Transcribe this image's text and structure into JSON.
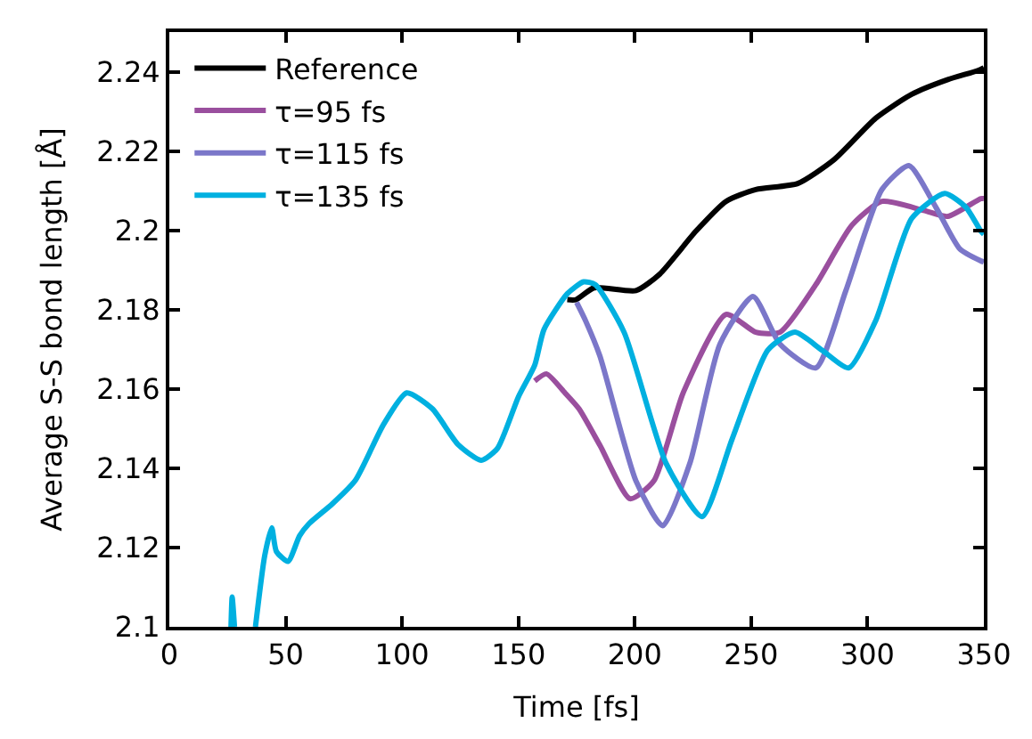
{
  "chart_data": {
    "type": "line",
    "xlabel": "Time [fs]",
    "ylabel": "Average S-S bond length [Å]",
    "xlim": [
      0,
      350
    ],
    "xticks": [
      0,
      50,
      100,
      150,
      200,
      250,
      300,
      350
    ],
    "ylim": [
      2.1,
      2.25
    ],
    "yticks": [
      2.1,
      2.12,
      2.14,
      2.16,
      2.18,
      2.2,
      2.22,
      2.24
    ],
    "legend": "top left",
    "marker": "none",
    "line_style": "solid",
    "series": [
      {
        "name": "Reference",
        "color": "#000000",
        "x": [
          171,
          174.7,
          182.5,
          200.5,
          210.8,
          226.3,
          239.2,
          252,
          270,
          285.6,
          303.6,
          319,
          334.5,
          347.4,
          350
        ],
        "values": [
          2.1825,
          2.1825,
          2.1855,
          2.1848,
          2.189,
          2.1998,
          2.2073,
          2.2103,
          2.2118,
          2.2178,
          2.2283,
          2.2343,
          2.238,
          2.2403,
          2.241
        ]
      },
      {
        "name": "τ=95 fs",
        "color": "#9a4f9e",
        "x": [
          157,
          162,
          170,
          176,
          185,
          198,
          208.2,
          221,
          239.2,
          252,
          262.4,
          277.8,
          293.3,
          306.2,
          324.2,
          334.5,
          348.7,
          350
        ],
        "values": [
          2.162,
          2.1638,
          2.159,
          2.155,
          2.1458,
          2.1323,
          2.1368,
          2.1593,
          2.1788,
          2.1743,
          2.1743,
          2.1863,
          2.2013,
          2.2073,
          2.205,
          2.2035,
          2.208,
          2.208
        ]
      },
      {
        "name": "τ=115 fs",
        "color": "#7b77c9",
        "x": [
          175,
          179,
          185,
          200.5,
          212,
          223.7,
          236.6,
          250.8,
          262.4,
          277.8,
          290.7,
          306.2,
          317.8,
          329.4,
          339.7,
          348.7,
          350
        ],
        "values": [
          2.1818,
          2.177,
          2.1683,
          2.1368,
          2.1255,
          2.1413,
          2.1713,
          2.1833,
          2.1713,
          2.1653,
          2.1848,
          2.2103,
          2.2163,
          2.2058,
          2.1953,
          2.1923,
          2.192
        ]
      },
      {
        "name": "τ=135 fs",
        "color": "#00b0e0",
        "x": [
          26.5,
          27,
          28,
          29,
          37,
          41,
          44,
          46,
          51,
          56,
          60,
          70,
          80,
          92,
          102,
          113,
          124,
          134,
          141,
          150,
          157,
          161,
          171,
          178,
          183,
          195.4,
          213.4,
          228.9,
          241.8,
          257.2,
          268.8,
          280.4,
          292,
          303.6,
          319,
          333.2,
          342.3,
          348.7,
          350
        ],
        "values": [
          2.1,
          2.1075,
          2.1,
          null,
          2.1,
          2.118,
          2.125,
          2.119,
          2.1165,
          2.123,
          2.126,
          2.131,
          2.137,
          2.151,
          2.159,
          2.155,
          2.146,
          2.142,
          2.145,
          2.158,
          2.166,
          2.175,
          2.184,
          2.187,
          2.1863,
          2.1743,
          2.1413,
          2.1278,
          2.1473,
          2.1698,
          2.1743,
          2.1698,
          2.1653,
          2.1773,
          2.203,
          2.2093,
          2.2058,
          2.1998,
          2.199
        ]
      }
    ]
  }
}
